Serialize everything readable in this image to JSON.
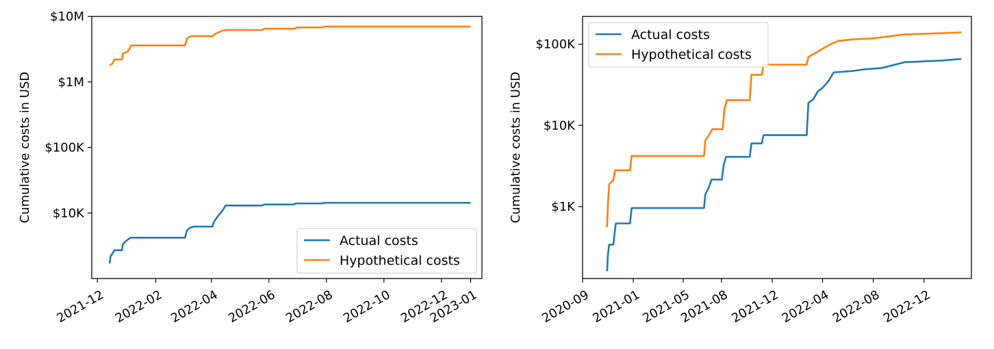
{
  "chart_data": [
    {
      "type": "line",
      "title": "",
      "xlabel": "",
      "ylabel": "Cumulative costs in USD",
      "yscale": "log",
      "xlim": [
        "2021-11-25",
        "2023-01-13"
      ],
      "ylim": [
        1000,
        10000000
      ],
      "x_ticks": [
        "2021-12",
        "2022-02",
        "2022-04",
        "2022-06",
        "2022-08",
        "2022-10",
        "2022-12",
        "2023-01"
      ],
      "y_ticks": [
        {
          "value": 10000,
          "label": "$10K"
        },
        {
          "value": 100000,
          "label": "$100K"
        },
        {
          "value": 1000000,
          "label": "$1M"
        },
        {
          "value": 10000000,
          "label": "$10M"
        }
      ],
      "grid": false,
      "legend_position": "bottom-right",
      "series": [
        {
          "name": "Actual costs",
          "color": "#1f77b4",
          "points": [
            [
              "2021-12-14",
              1700
            ],
            [
              "2021-12-15",
              2200
            ],
            [
              "2021-12-17",
              2400
            ],
            [
              "2021-12-19",
              2700
            ],
            [
              "2021-12-27",
              2700
            ],
            [
              "2021-12-28",
              3300
            ],
            [
              "2021-12-30",
              3600
            ],
            [
              "2022-01-02",
              3900
            ],
            [
              "2022-01-05",
              4200
            ],
            [
              "2022-03-04",
              4200
            ],
            [
              "2022-03-06",
              5400
            ],
            [
              "2022-03-09",
              5900
            ],
            [
              "2022-03-13",
              6200
            ],
            [
              "2022-04-02",
              6200
            ],
            [
              "2022-04-04",
              7500
            ],
            [
              "2022-04-08",
              9000
            ],
            [
              "2022-04-13",
              11000
            ],
            [
              "2022-04-16",
              13000
            ],
            [
              "2022-05-25",
              13000
            ],
            [
              "2022-05-27",
              13500
            ],
            [
              "2022-06-27",
              13500
            ],
            [
              "2022-06-30",
              14000
            ],
            [
              "2022-07-28",
              14000
            ],
            [
              "2022-07-30",
              14300
            ],
            [
              "2023-01-01",
              14300
            ]
          ]
        },
        {
          "name": "Hypothetical costs",
          "color": "#ff7f0e",
          "points": [
            [
              "2021-12-14",
              1800000
            ],
            [
              "2021-12-17",
              1900000
            ],
            [
              "2021-12-19",
              2200000
            ],
            [
              "2021-12-27",
              2200000
            ],
            [
              "2021-12-28",
              2700000
            ],
            [
              "2022-01-02",
              2900000
            ],
            [
              "2022-01-04",
              3200000
            ],
            [
              "2022-01-06",
              3600000
            ],
            [
              "2022-03-04",
              3600000
            ],
            [
              "2022-03-06",
              4600000
            ],
            [
              "2022-03-10",
              5000000
            ],
            [
              "2022-04-02",
              5000000
            ],
            [
              "2022-04-06",
              5500000
            ],
            [
              "2022-04-12",
              6000000
            ],
            [
              "2022-04-16",
              6200000
            ],
            [
              "2022-05-25",
              6200000
            ],
            [
              "2022-05-27",
              6500000
            ],
            [
              "2022-06-28",
              6500000
            ],
            [
              "2022-07-01",
              6800000
            ],
            [
              "2022-07-28",
              6800000
            ],
            [
              "2022-07-30",
              7000000
            ],
            [
              "2023-01-01",
              7000000
            ]
          ]
        }
      ]
    },
    {
      "type": "line",
      "title": "",
      "xlabel": "",
      "ylabel": "Cumulative costs in USD",
      "yscale": "log",
      "xlim": [
        "2020-09-01",
        "2023-03-25"
      ],
      "ylim": [
        130,
        220000
      ],
      "x_ticks": [
        "2020-09",
        "2021-01",
        "2021-05",
        "2021-08",
        "2021-12",
        "2022-04",
        "2022-08",
        "2022-12"
      ],
      "y_ticks": [
        {
          "value": 1000,
          "label": "$1K"
        },
        {
          "value": 10000,
          "label": "$10K"
        },
        {
          "value": 100000,
          "label": "$100K"
        }
      ],
      "grid": false,
      "legend_position": "top-left",
      "series": [
        {
          "name": "Actual costs",
          "color": "#1f77b4",
          "points": [
            [
              "2020-10-30",
              160
            ],
            [
              "2020-11-01",
              260
            ],
            [
              "2020-11-04",
              340
            ],
            [
              "2020-11-14",
              340
            ],
            [
              "2020-11-17",
              470
            ],
            [
              "2020-11-20",
              620
            ],
            [
              "2020-12-24",
              620
            ],
            [
              "2020-12-28",
              960
            ],
            [
              "2021-06-20",
              960
            ],
            [
              "2021-06-23",
              1400
            ],
            [
              "2021-07-01",
              1700
            ],
            [
              "2021-07-08",
              2150
            ],
            [
              "2021-08-02",
              2150
            ],
            [
              "2021-08-06",
              3200
            ],
            [
              "2021-08-12",
              4100
            ],
            [
              "2021-10-08",
              4100
            ],
            [
              "2021-10-12",
              6000
            ],
            [
              "2021-11-06",
              6000
            ],
            [
              "2021-11-10",
              7600
            ],
            [
              "2022-02-22",
              7600
            ],
            [
              "2022-02-26",
              19000
            ],
            [
              "2022-03-10",
              21000
            ],
            [
              "2022-03-20",
              26000
            ],
            [
              "2022-04-01",
              29000
            ],
            [
              "2022-04-15",
              35000
            ],
            [
              "2022-04-28",
              45000
            ],
            [
              "2022-05-25",
              46000
            ],
            [
              "2022-06-15",
              47000
            ],
            [
              "2022-07-10",
              49000
            ],
            [
              "2022-08-22",
              51000
            ],
            [
              "2022-10-15",
              60000
            ],
            [
              "2023-01-15",
              63000
            ],
            [
              "2023-03-01",
              66000
            ]
          ]
        },
        {
          "name": "Hypothetical costs",
          "color": "#ff7f0e",
          "points": [
            [
              "2020-10-30",
              560
            ],
            [
              "2020-11-01",
              1100
            ],
            [
              "2020-11-04",
              1900
            ],
            [
              "2020-11-14",
              2100
            ],
            [
              "2020-11-18",
              2800
            ],
            [
              "2020-12-24",
              2800
            ],
            [
              "2020-12-28",
              4200
            ],
            [
              "2021-06-20",
              4200
            ],
            [
              "2021-06-23",
              6500
            ],
            [
              "2021-07-01",
              7500
            ],
            [
              "2021-07-10",
              9000
            ],
            [
              "2021-08-04",
              9000
            ],
            [
              "2021-08-08",
              16000
            ],
            [
              "2021-08-14",
              20500
            ],
            [
              "2021-10-08",
              20500
            ],
            [
              "2021-10-12",
              42000
            ],
            [
              "2021-11-06",
              42000
            ],
            [
              "2021-11-10",
              56000
            ],
            [
              "2022-02-22",
              56000
            ],
            [
              "2022-02-26",
              70000
            ],
            [
              "2022-03-15",
              78000
            ],
            [
              "2022-04-01",
              88000
            ],
            [
              "2022-04-20",
              100000
            ],
            [
              "2022-05-10",
              110000
            ],
            [
              "2022-06-15",
              115000
            ],
            [
              "2022-08-01",
              118000
            ],
            [
              "2022-10-15",
              132000
            ],
            [
              "2023-01-15",
              137000
            ],
            [
              "2023-03-01",
              140000
            ]
          ]
        }
      ]
    }
  ]
}
